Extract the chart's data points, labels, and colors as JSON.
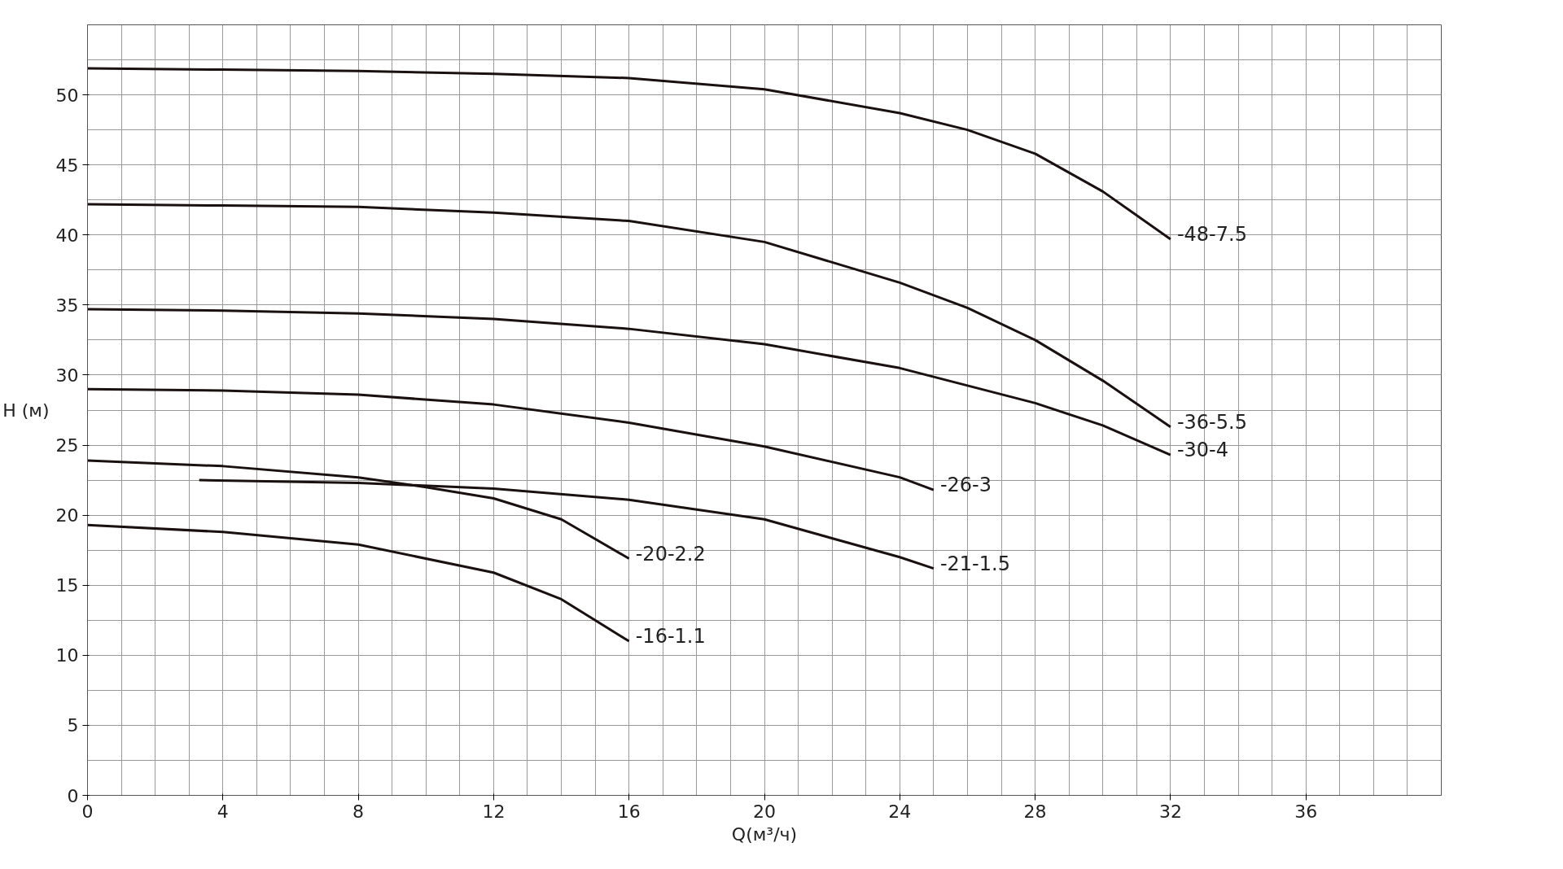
{
  "chart_data": {
    "type": "line",
    "xlabel": "Q(м³/ч)",
    "ylabel": "H (м)",
    "xlim": [
      0,
      40
    ],
    "ylim": [
      0,
      55
    ],
    "xticks": [
      0,
      4,
      8,
      12,
      16,
      20,
      24,
      28,
      32,
      36
    ],
    "yticks": [
      0,
      5,
      10,
      15,
      20,
      25,
      30,
      35,
      40,
      45,
      50
    ],
    "grid": true,
    "line_style": "solid",
    "marker": "none",
    "series": [
      {
        "name": "-48-7.5",
        "color": "#1a1010",
        "x": [
          0,
          4,
          8,
          12,
          16,
          20,
          24,
          26,
          28,
          30,
          32
        ],
        "values": [
          51.9,
          51.8,
          51.7,
          51.5,
          51.2,
          50.4,
          48.7,
          47.5,
          45.8,
          43.1,
          39.7
        ]
      },
      {
        "name": "-36-5.5",
        "color": "#1a1010",
        "x": [
          0,
          4,
          8,
          12,
          16,
          20,
          24,
          26,
          28,
          30,
          32
        ],
        "values": [
          42.2,
          42.1,
          42.0,
          41.6,
          41.0,
          39.5,
          36.6,
          34.8,
          32.5,
          29.6,
          26.3
        ]
      },
      {
        "name": "-30-4",
        "color": "#1a1010",
        "x": [
          0,
          4,
          8,
          12,
          16,
          20,
          24,
          28,
          30,
          32
        ],
        "values": [
          34.7,
          34.6,
          34.4,
          34.0,
          33.3,
          32.2,
          30.5,
          28.0,
          26.4,
          24.3
        ]
      },
      {
        "name": "-26-3",
        "color": "#1a1010",
        "x": [
          0,
          4,
          8,
          12,
          16,
          20,
          24,
          25
        ],
        "values": [
          29.0,
          28.9,
          28.6,
          27.9,
          26.6,
          24.9,
          22.7,
          21.8
        ]
      },
      {
        "name": "-20-2.2",
        "color": "#1a1010",
        "x": [
          0,
          4,
          8,
          10,
          12,
          14,
          16
        ],
        "values": [
          23.9,
          23.5,
          22.7,
          22.0,
          21.2,
          19.7,
          16.9
        ]
      },
      {
        "name": "-21-1.5",
        "color": "#1a1010",
        "x": [
          3.3,
          8,
          12,
          16,
          20,
          24,
          25
        ],
        "values": [
          22.5,
          22.3,
          21.9,
          21.1,
          19.7,
          17.0,
          16.2
        ]
      },
      {
        "name": "-16-1.1",
        "color": "#1a1010",
        "x": [
          0,
          4,
          8,
          12,
          14,
          16
        ],
        "values": [
          19.3,
          18.8,
          17.9,
          15.9,
          14.0,
          11.0
        ]
      }
    ]
  }
}
